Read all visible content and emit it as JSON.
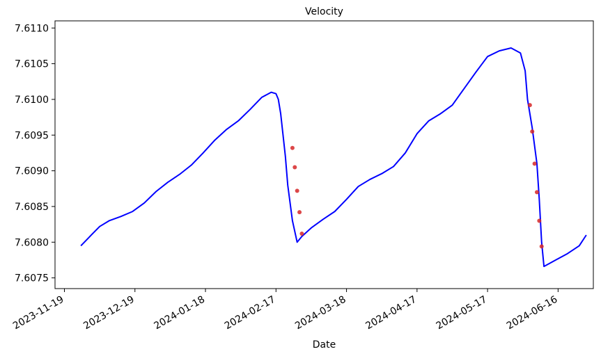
{
  "chart_data": {
    "type": "line",
    "title": "Velocity",
    "xlabel": "Date",
    "ylabel": "",
    "x_type": "date",
    "xlim": [
      "2023-11-15",
      "2024-07-01"
    ],
    "ylim": [
      7.60735,
      7.6111
    ],
    "grid": false,
    "x_ticks": [
      "2023-11-19",
      "2023-12-19",
      "2024-01-18",
      "2024-02-17",
      "2024-03-18",
      "2024-04-17",
      "2024-05-17",
      "2024-06-16"
    ],
    "y_ticks": [
      "7.6075",
      "7.6080",
      "7.6085",
      "7.6090",
      "7.6095",
      "7.6100",
      "7.6105",
      "7.6110"
    ],
    "colors": {
      "line": "#0000ff",
      "highlight": "#d62728"
    },
    "series": [
      {
        "style": "line",
        "color": "#0000ff",
        "x": [
          "2023-11-26",
          "2023-12-01",
          "2023-12-04",
          "2023-12-08",
          "2023-12-13",
          "2023-12-18",
          "2023-12-23",
          "2023-12-28",
          "2024-01-02",
          "2024-01-07",
          "2024-01-12",
          "2024-01-17",
          "2024-01-22",
          "2024-01-27",
          "2024-02-01",
          "2024-02-06",
          "2024-02-11",
          "2024-02-15",
          "2024-02-17",
          "2024-02-18",
          "2024-02-19",
          "2024-02-20",
          "2024-02-21",
          "2024-02-22",
          "2024-02-24",
          "2024-02-26",
          "2024-02-28",
          "2024-03-03",
          "2024-03-08",
          "2024-03-13",
          "2024-03-18",
          "2024-03-23",
          "2024-03-28",
          "2024-04-02",
          "2024-04-07",
          "2024-04-12",
          "2024-04-17",
          "2024-04-22",
          "2024-04-27",
          "2024-05-02",
          "2024-05-07",
          "2024-05-12",
          "2024-05-17",
          "2024-05-22",
          "2024-05-27",
          "2024-05-31",
          "2024-06-02",
          "2024-06-03",
          "2024-06-05",
          "2024-06-07",
          "2024-06-08",
          "2024-06-09",
          "2024-06-10",
          "2024-06-15",
          "2024-06-20",
          "2024-06-25",
          "2024-06-28"
        ],
        "y": [
          7.60795,
          7.60812,
          7.60822,
          7.6083,
          7.60836,
          7.60843,
          7.60855,
          7.60871,
          7.60884,
          7.60895,
          7.60908,
          7.60925,
          7.60943,
          7.60958,
          7.6097,
          7.60986,
          7.61003,
          7.6101,
          7.61008,
          7.61,
          7.6098,
          7.6095,
          7.6092,
          7.6088,
          7.6083,
          7.608,
          7.60808,
          7.6082,
          7.60832,
          7.60843,
          7.6086,
          7.60878,
          7.60888,
          7.60896,
          7.60906,
          7.60925,
          7.60952,
          7.6097,
          7.6098,
          7.60992,
          7.61015,
          7.61038,
          7.6106,
          7.61068,
          7.61072,
          7.61065,
          7.6104,
          7.61,
          7.6096,
          7.6091,
          7.6086,
          7.608,
          7.60766,
          7.60775,
          7.60784,
          7.60795,
          7.6081
        ]
      },
      {
        "style": "scatter",
        "color": "#d62728",
        "x": [
          "2024-02-24",
          "2024-02-25",
          "2024-02-26",
          "2024-02-27",
          "2024-02-28"
        ],
        "y": [
          7.60932,
          7.60905,
          7.60872,
          7.60842,
          7.60812
        ]
      },
      {
        "style": "scatter",
        "color": "#d62728",
        "x": [
          "2024-06-04",
          "2024-06-05",
          "2024-06-06",
          "2024-06-07",
          "2024-06-08",
          "2024-06-09"
        ],
        "y": [
          7.60992,
          7.60955,
          7.6091,
          7.6087,
          7.6083,
          7.60794
        ]
      }
    ]
  }
}
